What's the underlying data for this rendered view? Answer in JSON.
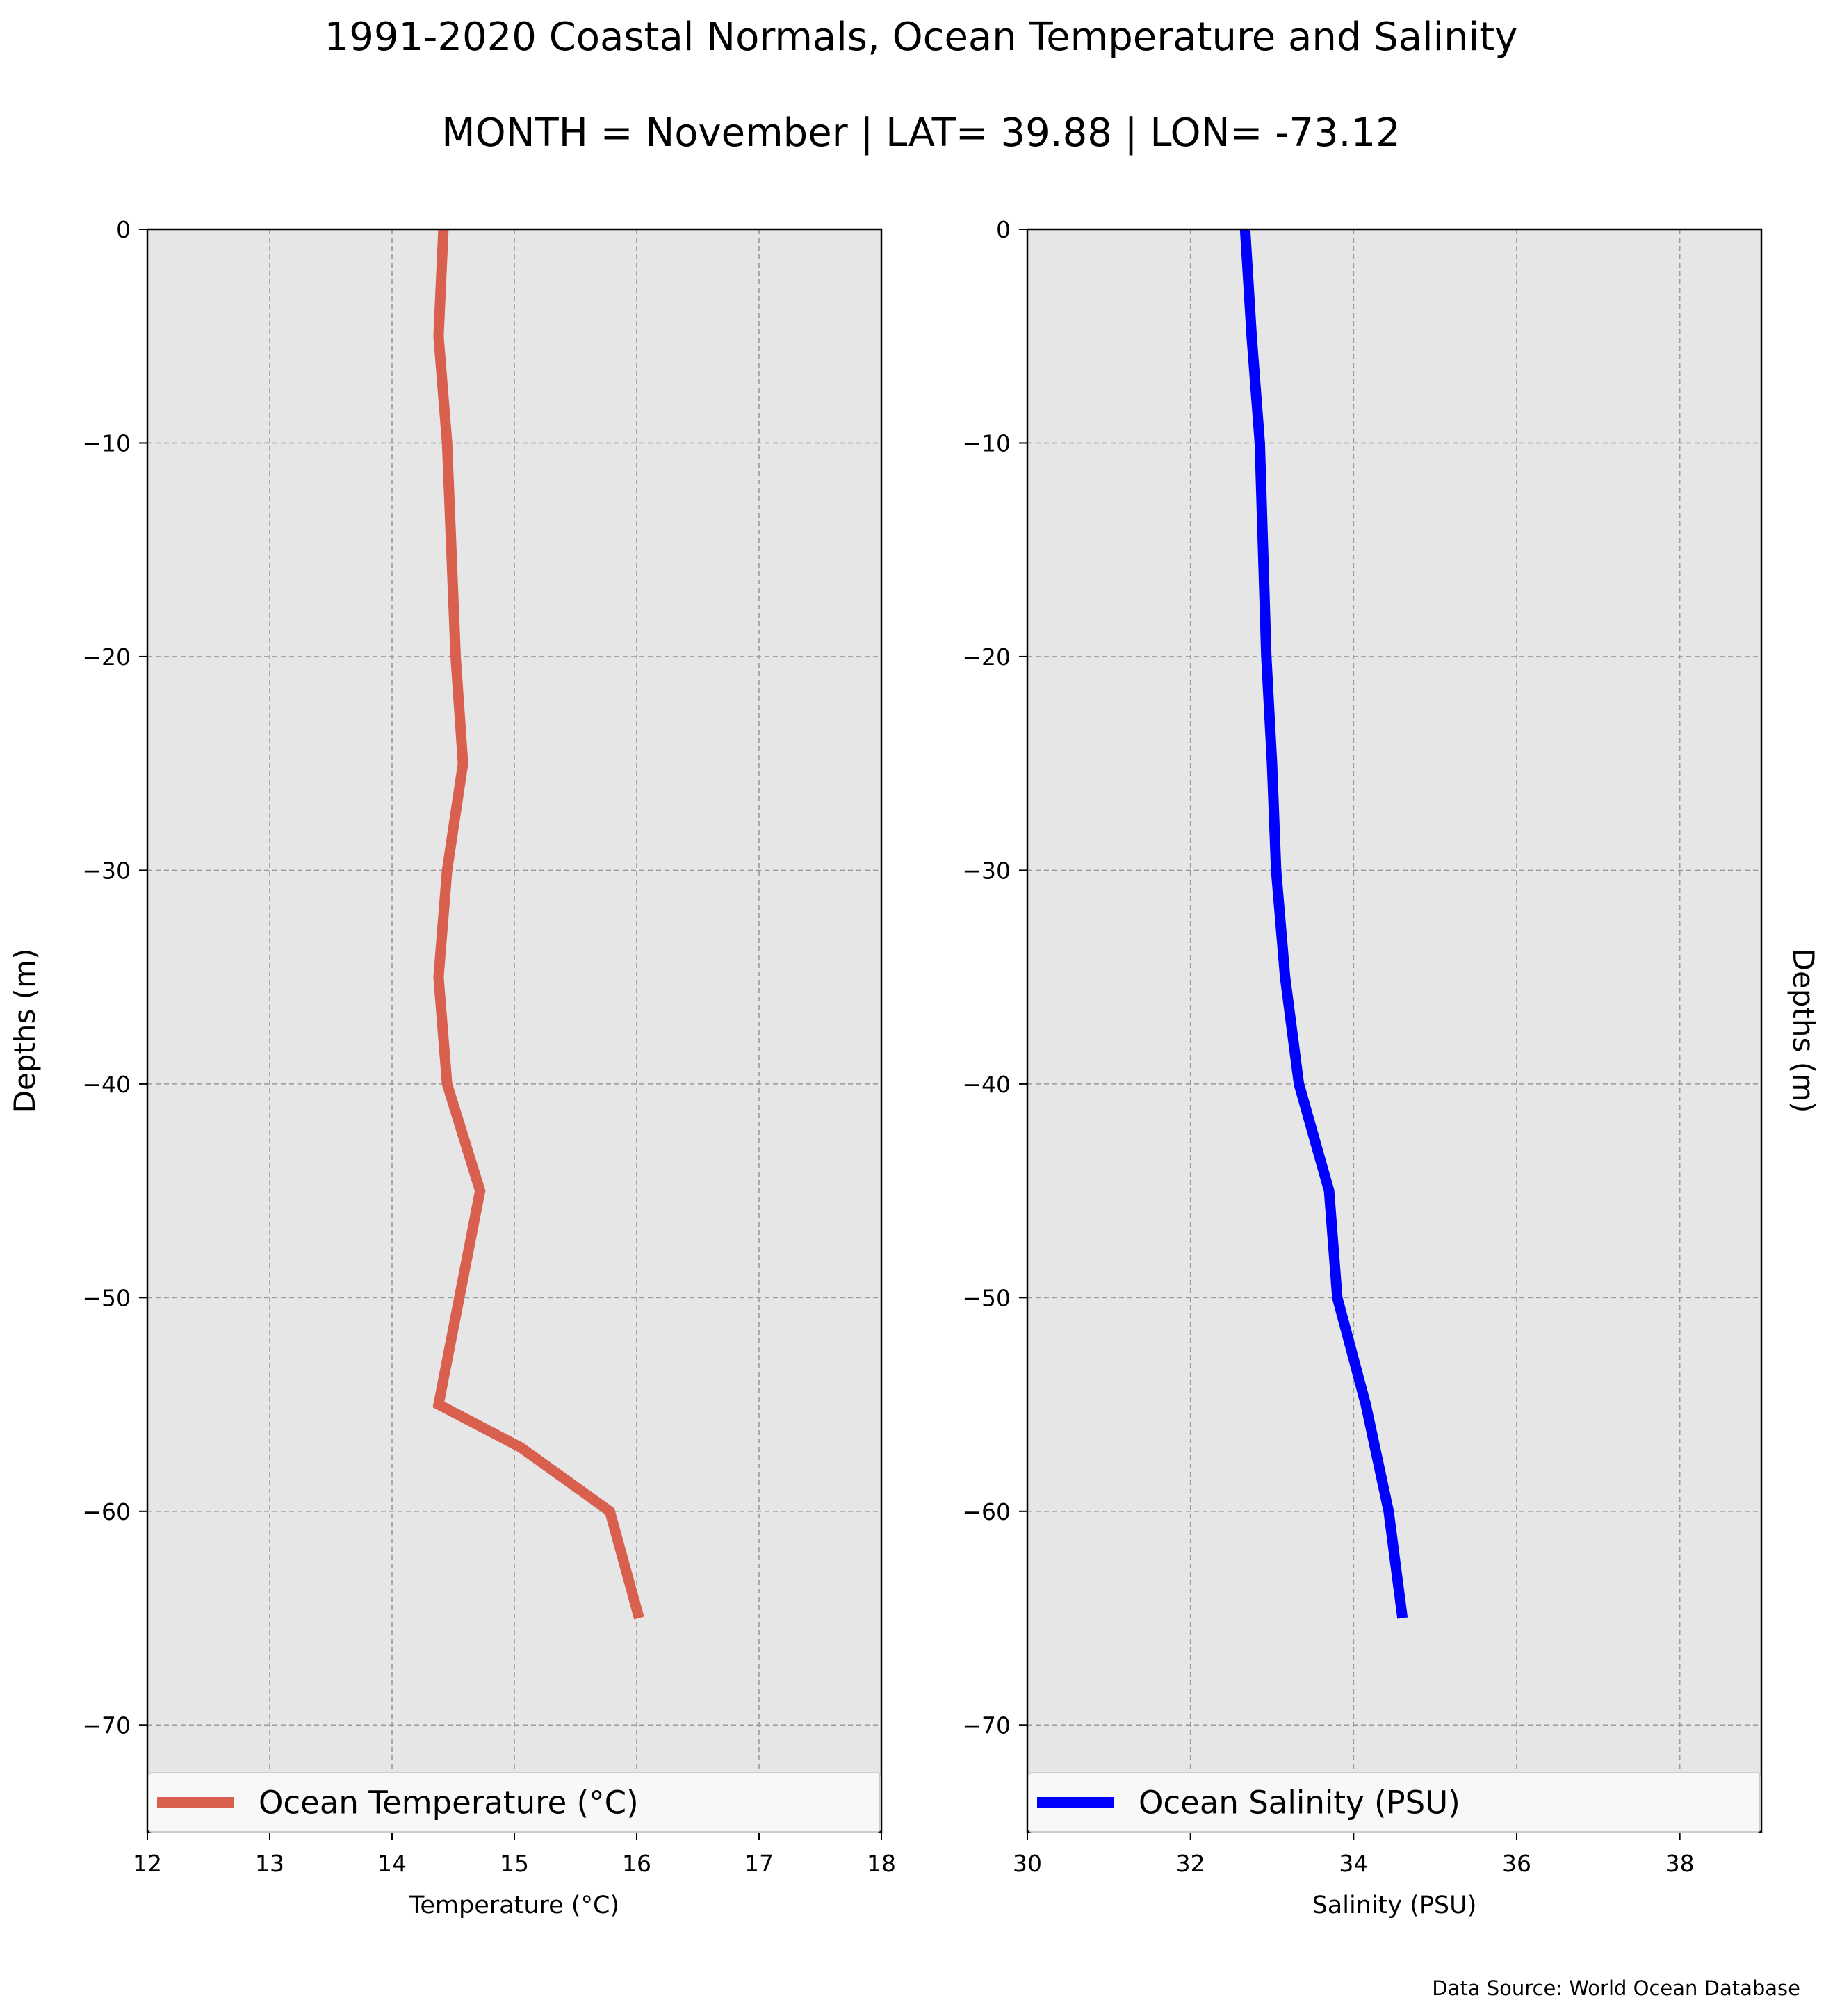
{
  "figure": {
    "title": "1991-2020 Coastal Normals, Ocean Temperature and Salinity",
    "subtitle": "MONTH = November | LAT= 39.88 | LON= -73.12",
    "source_note": "Data Source: World Ocean Database"
  },
  "chart_data": [
    {
      "type": "line",
      "xlabel": "Temperature ($^\\circ$C)",
      "xlabel_display": "Temperature (°C)",
      "ylabel": "Depths (m)",
      "xlim": [
        12,
        18
      ],
      "ylim": [
        -75,
        0
      ],
      "xticks": [
        12,
        13,
        14,
        15,
        16,
        17,
        18
      ],
      "yticks": [
        0,
        -10,
        -20,
        -30,
        -40,
        -50,
        -60,
        -70
      ],
      "ytick_labels": [
        "0",
        "−10",
        "−20",
        "−30",
        "−40",
        "−50",
        "−60",
        "−70"
      ],
      "grid": true,
      "legend_position": "bottom",
      "series": [
        {
          "name": "Ocean Temperature (°C)",
          "color": "#d95f4e",
          "x": [
            14.42,
            14.38,
            14.45,
            14.52,
            14.58,
            14.45,
            14.38,
            14.45,
            14.72,
            14.38,
            15.05,
            15.78,
            16.02
          ],
          "y": [
            0,
            -5,
            -10,
            -20,
            -25,
            -30,
            -35,
            -40,
            -45,
            -55,
            -57,
            -60,
            -65
          ]
        }
      ]
    },
    {
      "type": "line",
      "xlabel": "Salinity (PSU)",
      "ylabel": "Depths (m)",
      "xlim": [
        30,
        39
      ],
      "ylim": [
        -75,
        0
      ],
      "xticks": [
        30,
        32,
        34,
        36,
        38
      ],
      "yticks": [
        0,
        -10,
        -20,
        -30,
        -40,
        -50,
        -60,
        -70
      ],
      "ytick_labels": [
        "0",
        "−10",
        "−20",
        "−30",
        "−40",
        "−50",
        "−60",
        "−70"
      ],
      "grid": true,
      "legend_position": "bottom",
      "series": [
        {
          "name": "Ocean Salinity (PSU)",
          "color": "#0000ff",
          "x": [
            32.67,
            32.75,
            32.85,
            32.93,
            33.0,
            33.05,
            33.16,
            33.33,
            33.7,
            33.8,
            34.15,
            34.43,
            34.6
          ],
          "y": [
            0,
            -5,
            -10,
            -20,
            -25,
            -30,
            -35,
            -40,
            -45,
            -50,
            -55,
            -60,
            -65
          ]
        }
      ]
    }
  ]
}
